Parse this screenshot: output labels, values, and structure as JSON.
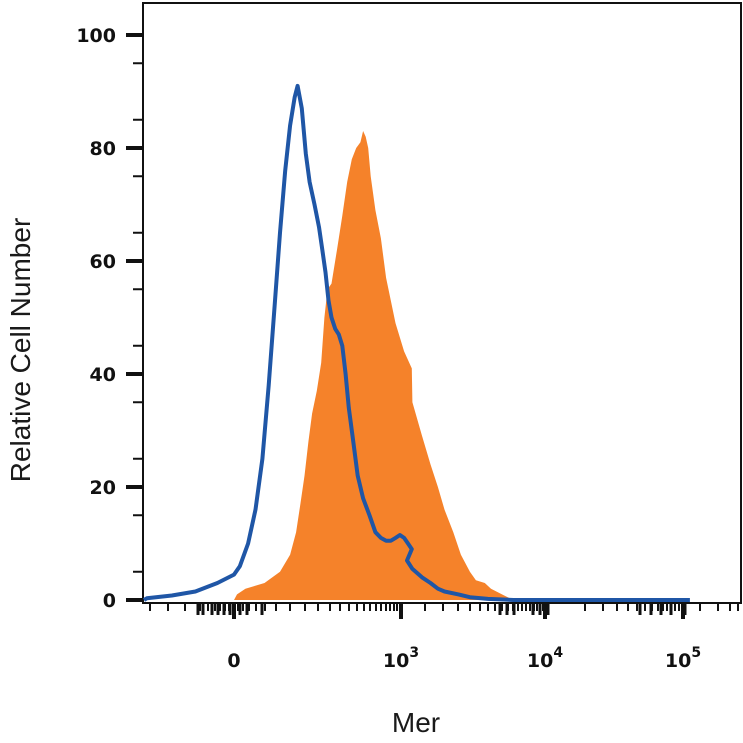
{
  "chart_data": {
    "type": "area",
    "xlabel": "Mer",
    "ylabel": "Relative Cell Number",
    "ylim": [
      0,
      100
    ],
    "y_ticks": [
      "0",
      "20",
      "40",
      "60",
      "80",
      "100"
    ],
    "x_scale": "biexponential",
    "x_ticks": [
      {
        "base": "0",
        "exp": ""
      },
      {
        "base": "10",
        "exp": "3"
      },
      {
        "base": "10",
        "exp": "4"
      },
      {
        "base": "10",
        "exp": "5"
      }
    ],
    "series": [
      {
        "style": "filled",
        "color": "#f5822a",
        "points": [
          [
            0,
            0
          ],
          [
            5,
            1
          ],
          [
            20,
            2
          ],
          [
            60,
            3
          ],
          [
            100,
            5
          ],
          [
            130,
            8
          ],
          [
            150,
            12
          ],
          [
            165,
            17
          ],
          [
            180,
            22
          ],
          [
            195,
            28
          ],
          [
            210,
            33
          ],
          [
            230,
            37
          ],
          [
            250,
            42
          ],
          [
            265,
            50
          ],
          [
            280,
            55
          ],
          [
            300,
            56
          ],
          [
            330,
            62
          ],
          [
            360,
            68
          ],
          [
            390,
            74
          ],
          [
            420,
            78
          ],
          [
            450,
            80
          ],
          [
            480,
            81
          ],
          [
            500,
            83
          ],
          [
            520,
            82
          ],
          [
            540,
            80
          ],
          [
            560,
            75
          ],
          [
            600,
            69
          ],
          [
            650,
            64
          ],
          [
            700,
            57
          ],
          [
            800,
            49
          ],
          [
            900,
            44
          ],
          [
            1000,
            41
          ],
          [
            1200,
            35
          ],
          [
            1400,
            29
          ],
          [
            1600,
            24
          ],
          [
            1800,
            20
          ],
          [
            2000,
            16
          ],
          [
            2300,
            12
          ],
          [
            2600,
            8
          ],
          [
            3000,
            5
          ],
          [
            3300,
            3.5
          ],
          [
            3800,
            3
          ],
          [
            4200,
            2
          ],
          [
            5000,
            1
          ],
          [
            6000,
            0
          ]
        ]
      },
      {
        "style": "line",
        "color": "#1f56a6",
        "points": [
          [
            -400,
            0
          ],
          [
            -250,
            0.3
          ],
          [
            -150,
            0.8
          ],
          [
            -80,
            1.5
          ],
          [
            -30,
            3
          ],
          [
            0,
            4.5
          ],
          [
            10,
            6
          ],
          [
            25,
            10
          ],
          [
            40,
            16
          ],
          [
            55,
            25
          ],
          [
            70,
            38
          ],
          [
            85,
            52
          ],
          [
            100,
            65
          ],
          [
            115,
            76
          ],
          [
            130,
            84
          ],
          [
            145,
            89
          ],
          [
            155,
            91
          ],
          [
            170,
            87
          ],
          [
            185,
            79
          ],
          [
            200,
            74
          ],
          [
            220,
            70
          ],
          [
            240,
            66
          ],
          [
            255,
            62
          ],
          [
            270,
            58
          ],
          [
            285,
            53
          ],
          [
            300,
            50
          ],
          [
            320,
            48
          ],
          [
            340,
            47
          ],
          [
            360,
            45
          ],
          [
            380,
            40
          ],
          [
            400,
            34
          ],
          [
            430,
            28
          ],
          [
            460,
            22
          ],
          [
            500,
            18
          ],
          [
            550,
            15
          ],
          [
            600,
            12
          ],
          [
            650,
            11
          ],
          [
            700,
            10.5
          ],
          [
            750,
            10.5
          ],
          [
            800,
            11
          ],
          [
            850,
            11.5
          ],
          [
            900,
            11
          ],
          [
            950,
            10
          ],
          [
            1000,
            9
          ],
          [
            1100,
            7
          ],
          [
            1200,
            5.5
          ],
          [
            1400,
            4
          ],
          [
            1600,
            3
          ],
          [
            1800,
            2
          ],
          [
            2000,
            1.5
          ],
          [
            2500,
            1
          ],
          [
            3000,
            0.5
          ],
          [
            4000,
            0.2
          ],
          [
            6000,
            0
          ],
          [
            100000,
            0
          ]
        ]
      }
    ]
  }
}
